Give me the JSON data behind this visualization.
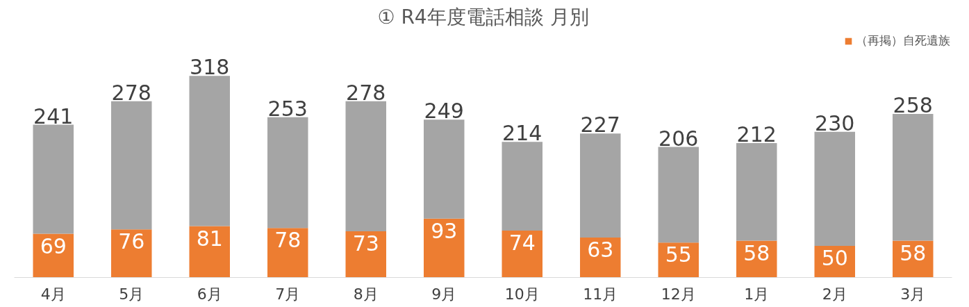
{
  "chart_data": {
    "type": "bar",
    "title": "① R4年度電話相談 月別",
    "categories": [
      "4月",
      "5月",
      "6月",
      "7月",
      "8月",
      "9月",
      "10月",
      "11月",
      "12月",
      "1月",
      "2月",
      "3月"
    ],
    "stacked": true,
    "series": [
      {
        "name": "（再掲）自死遺族",
        "color": "#ed7d31",
        "values": [
          69,
          76,
          81,
          78,
          73,
          93,
          74,
          63,
          55,
          58,
          50,
          58
        ],
        "value_labels": [
          "69",
          "76",
          "81",
          "78",
          "73",
          "93",
          "74",
          "63",
          "55",
          "58",
          "50",
          "58"
        ]
      },
      {
        "color": "#a5a5a5",
        "values": [
          172,
          202,
          237,
          175,
          205,
          156,
          140,
          164,
          151,
          154,
          180,
          200
        ]
      }
    ],
    "totals": [
      "241",
      "278",
      "318",
      "253",
      "278",
      "249",
      "214",
      "227",
      "206",
      "212",
      "230",
      "258"
    ],
    "legend": "top right",
    "grid": false
  }
}
